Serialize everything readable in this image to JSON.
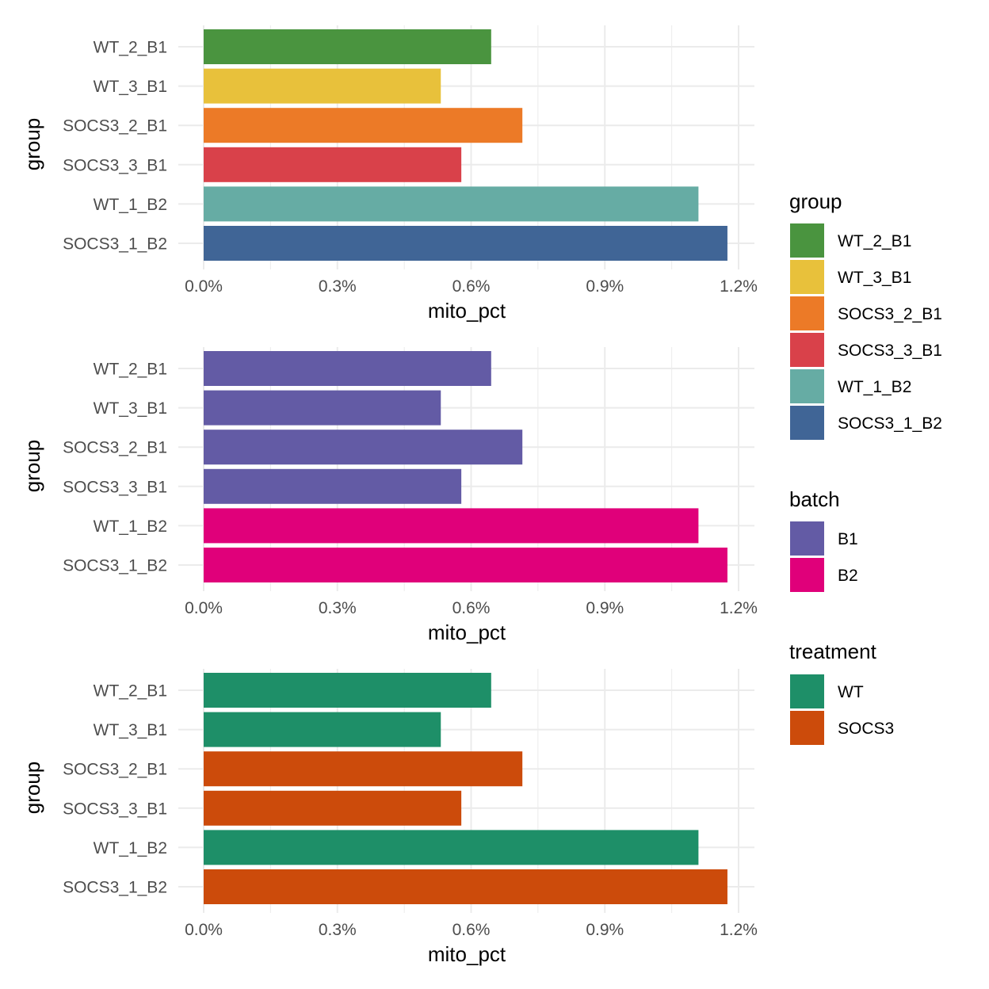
{
  "chart_data": [
    {
      "type": "bar",
      "orientation": "horizontal",
      "categories": [
        "WT_2_B1",
        "WT_3_B1",
        "SOCS3_2_B1",
        "SOCS3_3_B1",
        "WT_1_B2",
        "SOCS3_1_B2"
      ],
      "values": [
        0.645,
        0.532,
        0.715,
        0.578,
        1.11,
        1.175
      ],
      "fill_by": "group",
      "fills": [
        "WT_2_B1",
        "WT_3_B1",
        "SOCS3_2_B1",
        "SOCS3_3_B1",
        "WT_1_B2",
        "SOCS3_1_B2"
      ],
      "xlabel": "mito_pct",
      "ylabel": "group",
      "xlim": [
        0,
        1.2
      ],
      "xticks": [
        "0.0%",
        "0.3%",
        "0.6%",
        "0.9%",
        "1.2%"
      ],
      "grid": true,
      "legend": {
        "title": "group",
        "entries": [
          {
            "label": "WT_2_B1",
            "color": "#4a943f"
          },
          {
            "label": "WT_3_B1",
            "color": "#e8c13b"
          },
          {
            "label": "SOCS3_2_B1",
            "color": "#ec7a27"
          },
          {
            "label": "SOCS3_3_B1",
            "color": "#d9414a"
          },
          {
            "label": "WT_1_B2",
            "color": "#66aca4"
          },
          {
            "label": "SOCS3_1_B2",
            "color": "#406596"
          }
        ]
      }
    },
    {
      "type": "bar",
      "orientation": "horizontal",
      "categories": [
        "WT_2_B1",
        "WT_3_B1",
        "SOCS3_2_B1",
        "SOCS3_3_B1",
        "WT_1_B2",
        "SOCS3_1_B2"
      ],
      "values": [
        0.645,
        0.532,
        0.715,
        0.578,
        1.11,
        1.175
      ],
      "fill_by": "batch",
      "fills": [
        "B1",
        "B1",
        "B1",
        "B1",
        "B2",
        "B2"
      ],
      "xlabel": "mito_pct",
      "ylabel": "group",
      "xlim": [
        0,
        1.2
      ],
      "xticks": [
        "0.0%",
        "0.3%",
        "0.6%",
        "0.9%",
        "1.2%"
      ],
      "grid": true,
      "legend": {
        "title": "batch",
        "entries": [
          {
            "label": "B1",
            "color": "#635ba5"
          },
          {
            "label": "B2",
            "color": "#e0007a"
          }
        ]
      }
    },
    {
      "type": "bar",
      "orientation": "horizontal",
      "categories": [
        "WT_2_B1",
        "WT_3_B1",
        "SOCS3_2_B1",
        "SOCS3_3_B1",
        "WT_1_B2",
        "SOCS3_1_B2"
      ],
      "values": [
        0.645,
        0.532,
        0.715,
        0.578,
        1.11,
        1.175
      ],
      "fill_by": "treatment",
      "fills": [
        "WT",
        "WT",
        "SOCS3",
        "SOCS3",
        "WT",
        "SOCS3"
      ],
      "xlabel": "mito_pct",
      "ylabel": "group",
      "xlim": [
        0,
        1.2
      ],
      "xticks": [
        "0.0%",
        "0.3%",
        "0.6%",
        "0.9%",
        "1.2%"
      ],
      "grid": true,
      "legend": {
        "title": "treatment",
        "entries": [
          {
            "label": "WT",
            "color": "#1e8f68"
          },
          {
            "label": "SOCS3",
            "color": "#cc4b0b"
          }
        ]
      }
    }
  ]
}
